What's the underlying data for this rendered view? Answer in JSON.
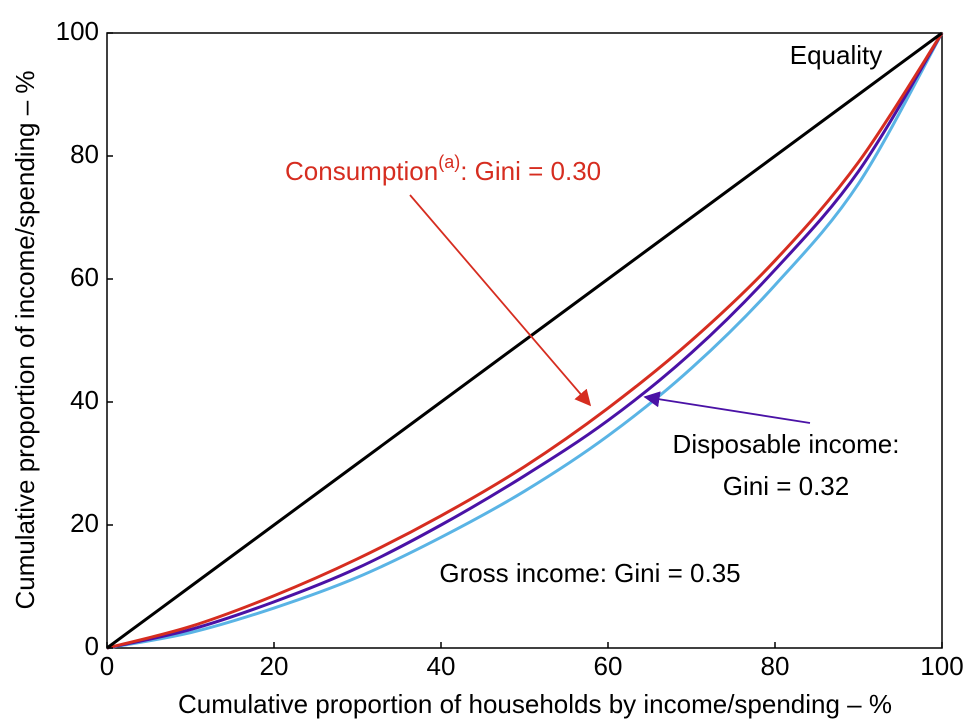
{
  "chart_data": {
    "type": "line",
    "x_label": "Cumulative proportion of households by income/spending – %",
    "y_label": "Cumulative proportion of income/spending – %",
    "x": [
      0,
      10,
      20,
      30,
      40,
      50,
      60,
      70,
      80,
      90,
      100
    ],
    "series": [
      {
        "color": "#5ab4e5",
        "values": [
          0,
          2.5,
          6.5,
          11.5,
          18,
          25.5,
          34.5,
          45.5,
          59,
          75.5,
          100
        ]
      },
      {
        "color": "#4a12a6",
        "values": [
          0,
          3,
          7.5,
          13,
          20,
          28,
          37,
          48,
          61.5,
          77.5,
          100
        ]
      },
      {
        "color": "#d62d20",
        "values": [
          0,
          3.5,
          8.5,
          14.5,
          21.5,
          29.5,
          39,
          50,
          63,
          79,
          100
        ]
      },
      {
        "name": "Equality",
        "color": "#000000",
        "values": [
          0,
          10,
          20,
          30,
          40,
          50,
          60,
          70,
          80,
          90,
          100
        ]
      }
    ],
    "annotations": [
      {
        "text": "Consumption",
        "sup": "(a)",
        "text_after": ": Gini = 0.30",
        "color": "#d62d20"
      },
      {
        "text": "Disposable income:",
        "text_after": "Gini = 0.32",
        "color": "#4a12a6"
      },
      {
        "text": "Gross income: Gini = 0.35",
        "color": "#5ab4e5"
      }
    ],
    "xlim": [
      0,
      100
    ],
    "ylim": [
      0,
      100
    ],
    "xticks": [
      0,
      20,
      40,
      60,
      80,
      100
    ],
    "yticks": [
      0,
      20,
      40,
      60,
      80,
      100
    ],
    "grid": false
  }
}
